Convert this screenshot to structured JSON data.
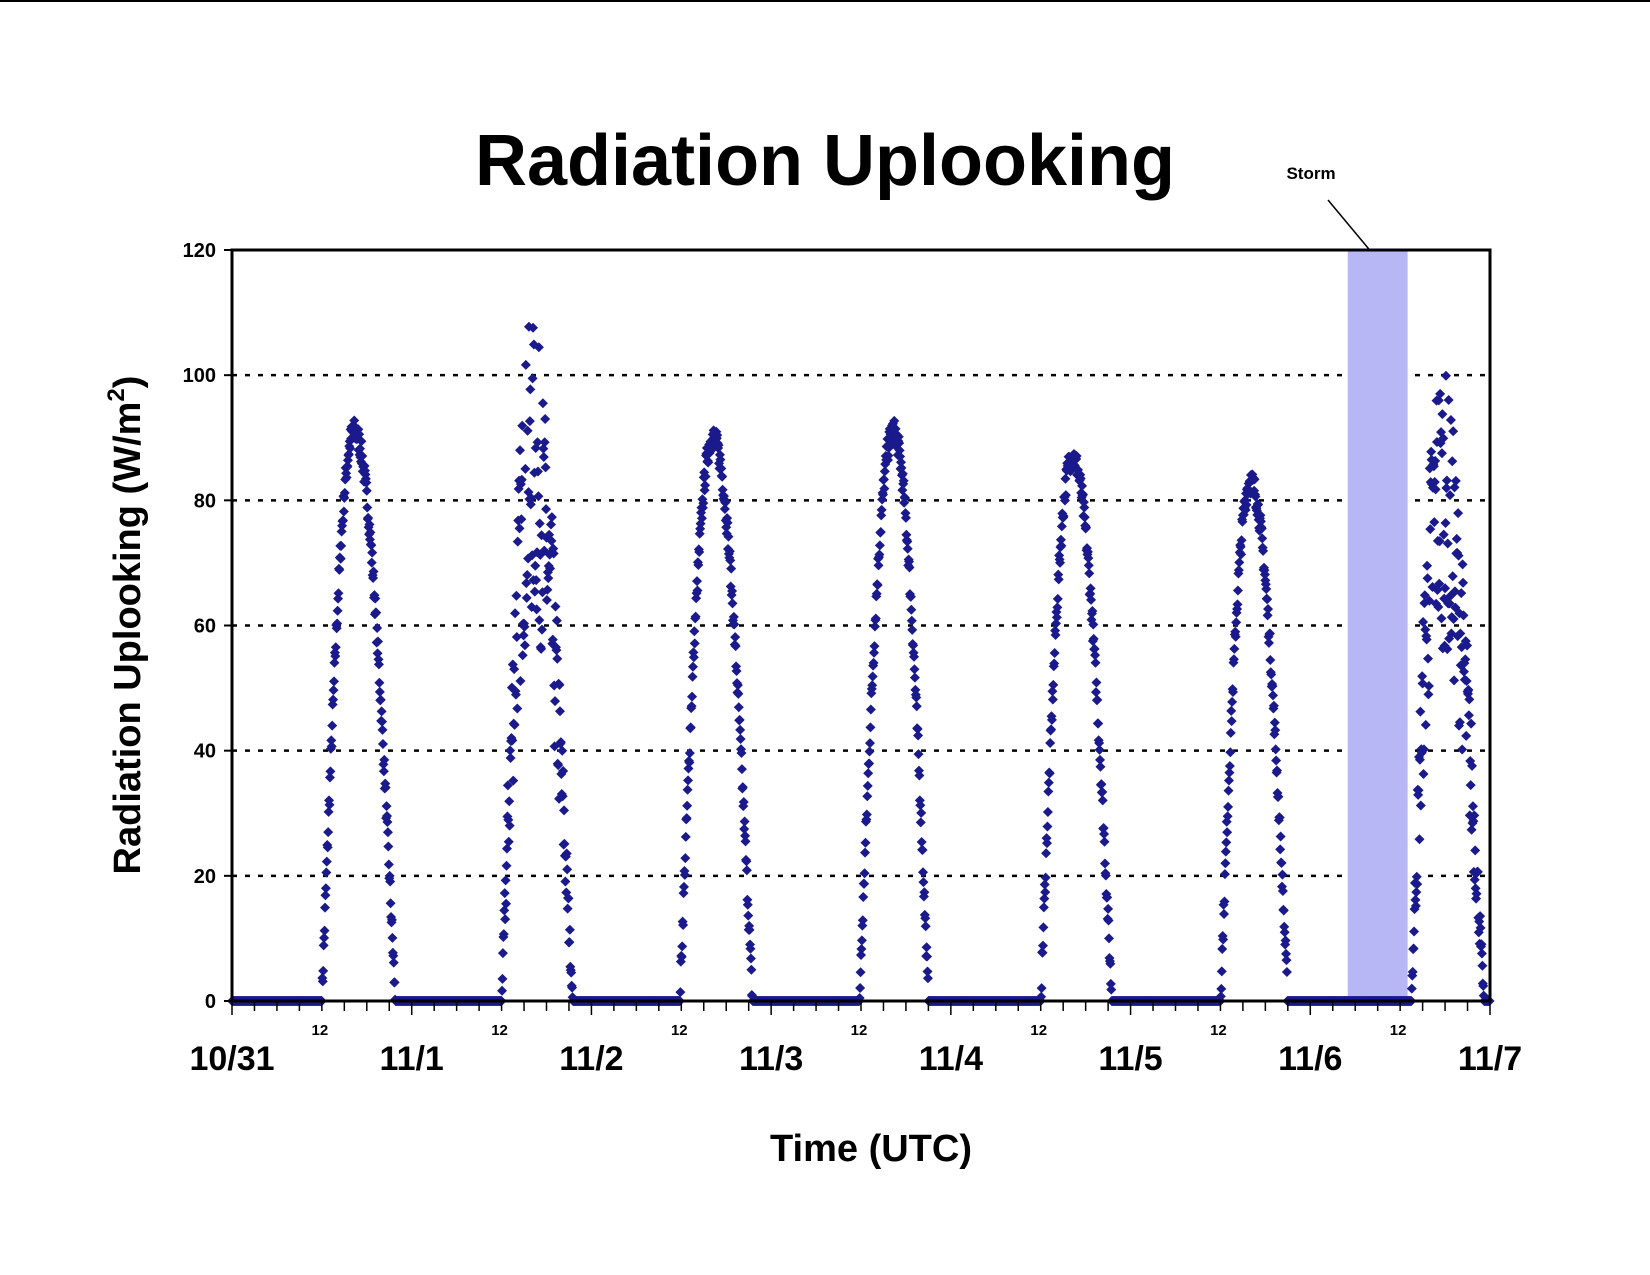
{
  "chart_data": {
    "type": "scatter",
    "title": "Radiation Uplooking",
    "xlabel": "Time (UTC)",
    "ylabel": "Radiation Uplooking (W/m",
    "ylabel_superscript": "2",
    "ylabel_suffix": ")",
    "xlim": [
      "10/31",
      "11/7"
    ],
    "ylim": [
      0,
      120
    ],
    "yticks": [
      0,
      20,
      40,
      60,
      80,
      100,
      120
    ],
    "grid": "horizontal dotted",
    "x_major_labels": [
      "10/31",
      "11/1",
      "11/2",
      "11/3",
      "11/4",
      "11/5",
      "11/6",
      "11/7"
    ],
    "x_minor_label": "12",
    "marker": "diamond",
    "series_color": "#1a1a8c",
    "annotation": {
      "text": "Storm",
      "span": [
        "11/6 05:00",
        "11/6 13:00"
      ],
      "color": "#b7b7f5"
    },
    "daily_peaks": [
      {
        "day": "10/31",
        "start_hour": 12.0,
        "peak_hour": 16.3,
        "end_hour": 21.8,
        "peak": 91,
        "fast_decay": false,
        "noisy": false
      },
      {
        "day": "11/1",
        "start_hour": 12.0,
        "peak_hour": 16.0,
        "end_hour": 21.5,
        "peak": 109,
        "fast_decay": false,
        "noisy": true
      },
      {
        "day": "11/2",
        "start_hour": 11.8,
        "peak_hour": 16.2,
        "end_hour": 21.5,
        "peak": 90,
        "fast_decay": false,
        "noisy": false
      },
      {
        "day": "11/3",
        "start_hour": 11.8,
        "peak_hour": 16.3,
        "end_hour": 21.0,
        "peak": 91,
        "fast_decay": false,
        "noisy": false
      },
      {
        "day": "11/4",
        "start_hour": 12.0,
        "peak_hour": 16.2,
        "end_hour": 21.5,
        "peak": 87,
        "fast_decay": false,
        "noisy": false
      },
      {
        "day": "11/5",
        "start_hour": 12.0,
        "peak_hour": 16.0,
        "end_hour": 21.0,
        "peak": 83,
        "fast_decay": false,
        "noisy": false
      },
      {
        "day": "11/6",
        "start_hour": 13.5,
        "peak_hour": 17.3,
        "end_hour": 23.2,
        "peak": 103,
        "fast_decay": false,
        "noisy": true
      }
    ]
  }
}
